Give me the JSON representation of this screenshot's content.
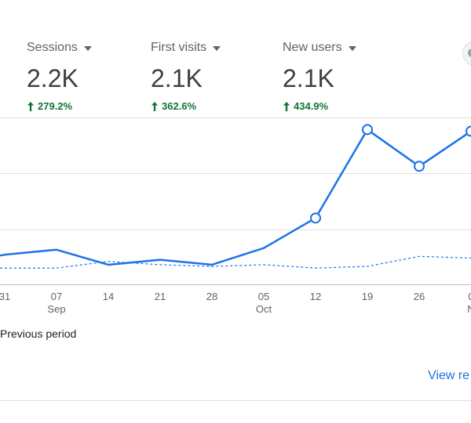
{
  "metrics": [
    {
      "label": "Sessions",
      "value": "2.2K",
      "delta": "279.2%"
    },
    {
      "label": "First visits",
      "value": "2.1K",
      "delta": "362.6%"
    },
    {
      "label": "New users",
      "value": "2.1K",
      "delta": "434.9%"
    }
  ],
  "chart_data": {
    "type": "line",
    "x_tick_labels": [
      "31",
      "07",
      "14",
      "21",
      "28",
      "05",
      "12",
      "19",
      "26",
      "0"
    ],
    "x_month_labels": [
      "",
      "Sep",
      "",
      "",
      "",
      "Oct",
      "",
      "",
      "",
      "N"
    ],
    "series": [
      {
        "values": [
          0.14,
          0.17,
          0.08,
          0.11,
          0.08,
          0.18,
          0.36,
          0.89,
          0.67,
          0.88
        ],
        "color": "#1a73e8",
        "style": "solid",
        "markers_from_index": 6
      },
      {
        "name": "Previous period",
        "values": [
          0.06,
          0.06,
          0.1,
          0.08,
          0.07,
          0.08,
          0.06,
          0.07,
          0.13,
          0.12
        ],
        "color": "#1a73e8",
        "style": "dashed"
      }
    ],
    "ylim": [
      0,
      1
    ],
    "grid": true
  },
  "legend": {
    "previous_label": "Previous period"
  },
  "footer": {
    "view_link": "View re"
  },
  "colors": {
    "accent": "#1a73e8",
    "positive": "#137333",
    "grid": "#e0e0e0"
  },
  "icons": {
    "delta": "arrow-up-icon",
    "dropdown": "caret-down-icon"
  }
}
